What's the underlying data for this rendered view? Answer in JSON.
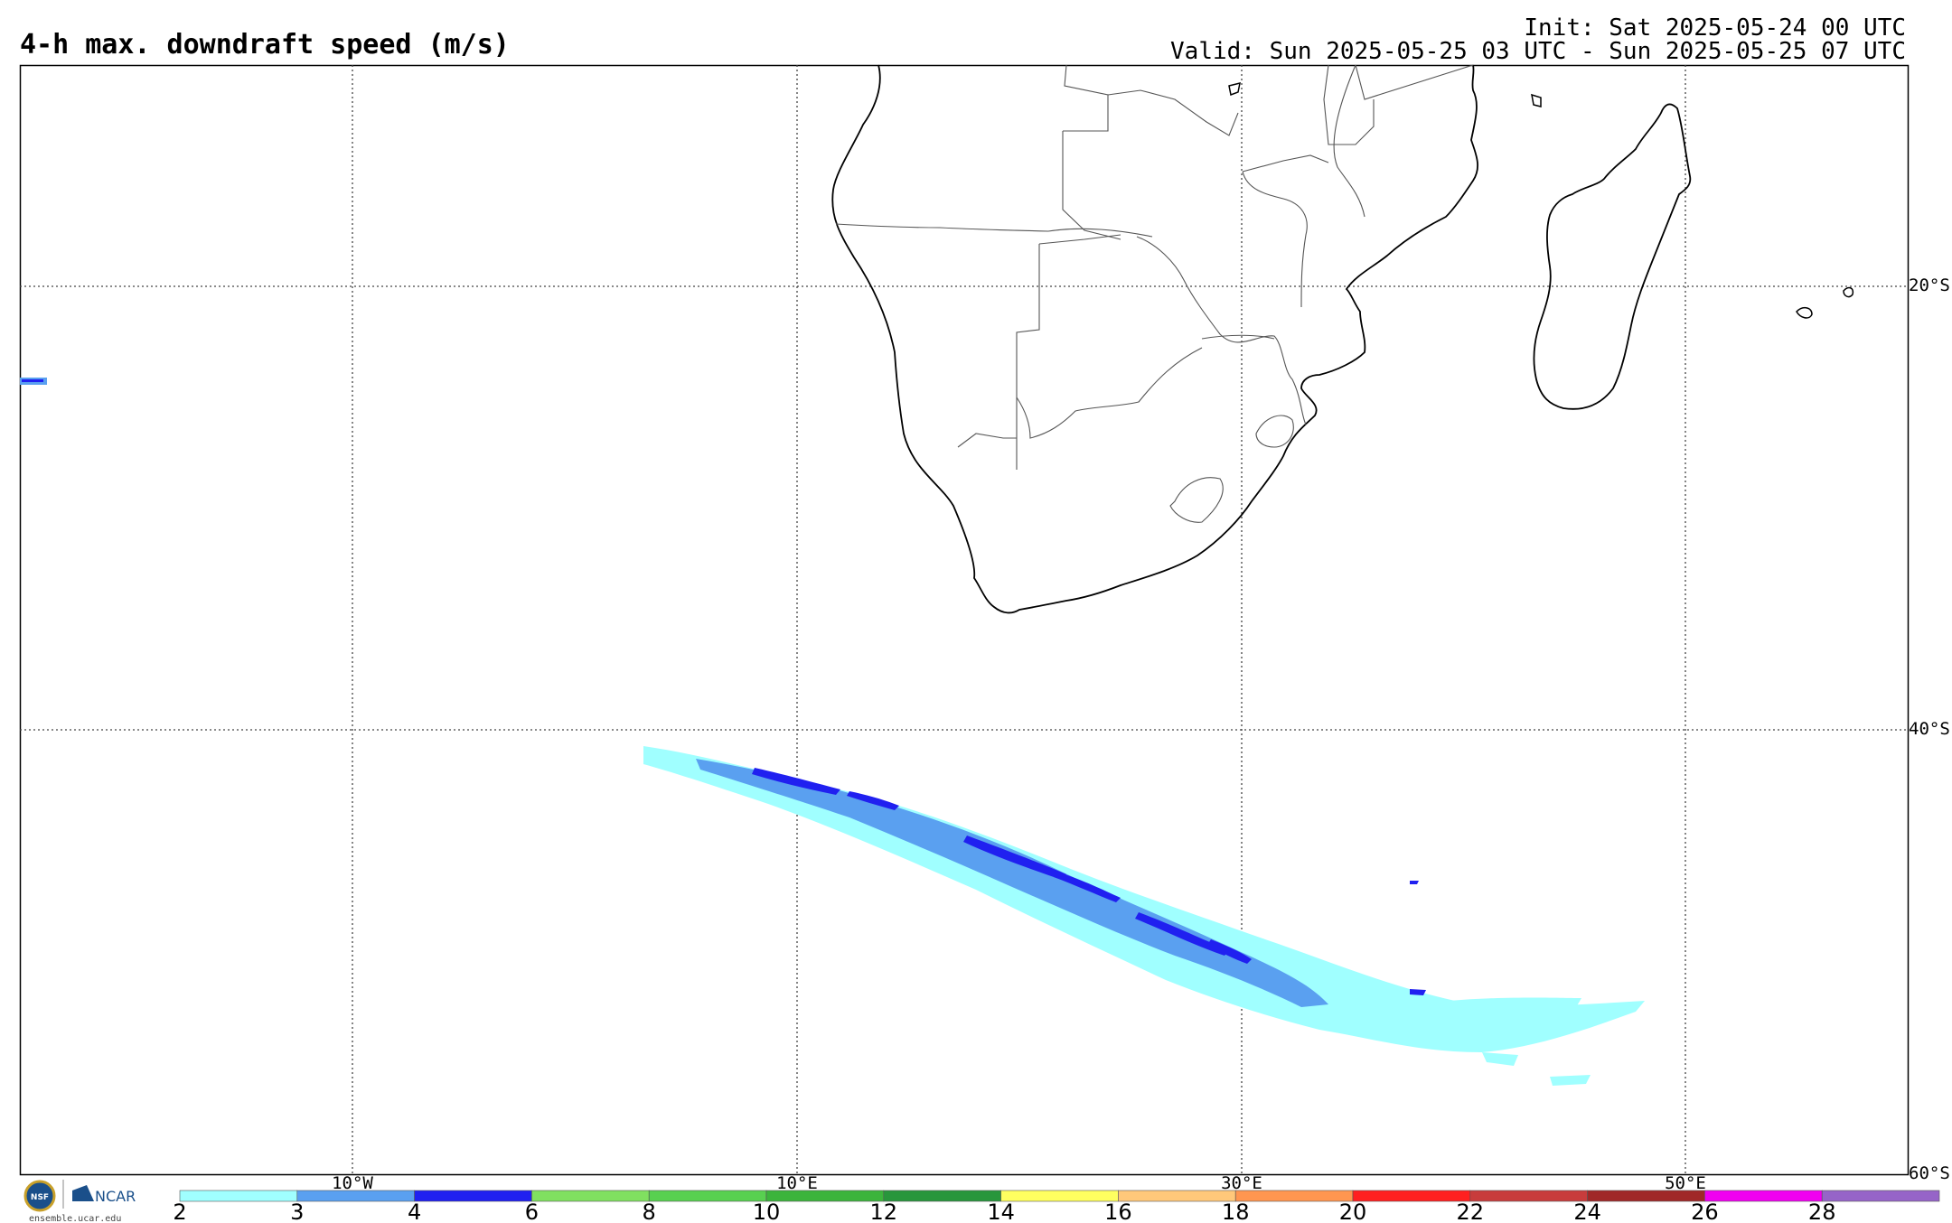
{
  "title": "4-h max. downdraft speed (m/s)",
  "init": "Init: Sat 2025-05-24 00 UTC",
  "valid": "Valid: Sun 2025-05-25 03 UTC - Sun 2025-05-25 07 UTC",
  "lat_labels": [
    "20°S",
    "40°S",
    "60°S"
  ],
  "lon_labels": [
    "10°W",
    "10°E",
    "30°E",
    "50°E"
  ],
  "colorbar": {
    "ticks": [
      "2",
      "3",
      "4",
      "6",
      "8",
      "10",
      "12",
      "14",
      "16",
      "18",
      "20",
      "22",
      "24",
      "26",
      "28"
    ],
    "colors": [
      "#a0ffff",
      "#5aa0f0",
      "#2020f0",
      "#80e060",
      "#58d050",
      "#3cb43c",
      "#28963c",
      "#ffff60",
      "#ffc87a",
      "#ff9650",
      "#ff2020",
      "#c83c3c",
      "#a02828",
      "#f000f0",
      "#9664c8"
    ]
  },
  "logos": {
    "nsf": "NSF",
    "ncar": "NCAR"
  },
  "site": "ensemble.ucar.edu"
}
